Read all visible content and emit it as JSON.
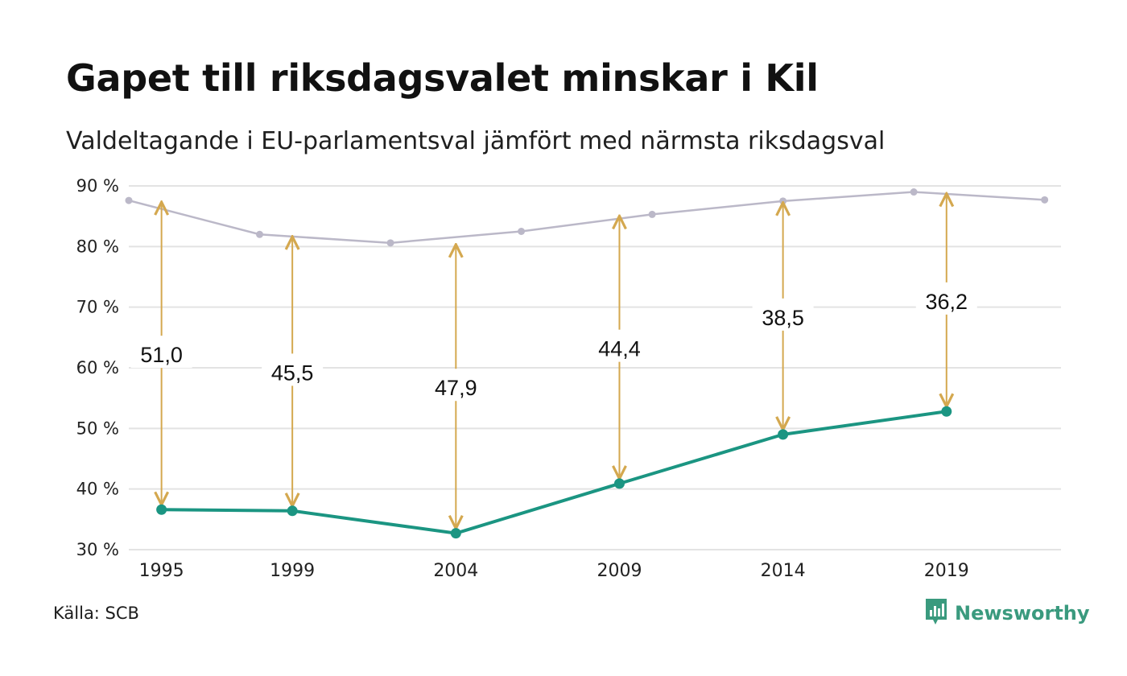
{
  "header": {
    "title": "Gapet till riksdagsvalet minskar i Kil",
    "subtitle": "Valdeltagande i EU-parlamentsval jämfört med närmsta riksdagsval"
  },
  "footer": {
    "source": "Källa: SCB",
    "brand": "Newsworthy"
  },
  "colors": {
    "eu_line": "#1b9582",
    "riksdag_line": "#bbb8c8",
    "gap_arrow": "#d4a84f",
    "grid": "#e3e3e3",
    "brand": "#3a9a7e"
  },
  "icons": {
    "brand_logo": "newsworthy-bar-chart-icon"
  },
  "chart_data": {
    "type": "line",
    "title": "Gapet till riksdagsvalet minskar i Kil",
    "subtitle": "Valdeltagande i EU-parlamentsval jämfört med närmsta riksdagsval",
    "ylim": [
      30,
      90
    ],
    "yticks": [
      30,
      40,
      50,
      60,
      70,
      80,
      90
    ],
    "ytick_labels": [
      "30 %",
      "40 %",
      "50 %",
      "60 %",
      "70 %",
      "80 %",
      "90 %"
    ],
    "xlim": [
      1994,
      2022.5
    ],
    "xticks": [
      1995,
      1999,
      2004,
      2009,
      2014,
      2019
    ],
    "grid": true,
    "series": [
      {
        "key": "eu",
        "x": [
          1995,
          1999,
          2004,
          2009,
          2014,
          2019
        ],
        "values": [
          36.6,
          36.4,
          32.7,
          40.9,
          49.0,
          52.8
        ],
        "color": "#1b9582"
      },
      {
        "key": "riksdag",
        "x": [
          1994,
          1998,
          2002,
          2006,
          2010,
          2014,
          2018,
          2022
        ],
        "values": [
          87.6,
          82.0,
          80.6,
          82.5,
          85.3,
          87.5,
          89.0,
          87.7
        ],
        "color": "#bbb8c8"
      }
    ],
    "gaps": [
      {
        "year": 1995,
        "label": "51,0",
        "to": 87.6
      },
      {
        "year": 1999,
        "label": "45,5",
        "to": 81.9
      },
      {
        "year": 2004,
        "label": "47,9",
        "to": 80.6
      },
      {
        "year": 2009,
        "label": "44,4",
        "to": 85.3
      },
      {
        "year": 2014,
        "label": "38,5",
        "to": 87.5
      },
      {
        "year": 2019,
        "label": "36,2",
        "to": 89.0
      }
    ]
  }
}
